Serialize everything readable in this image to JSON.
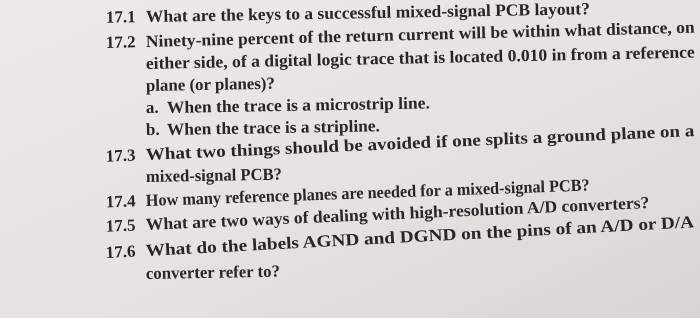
{
  "questions": [
    {
      "number": "17.1",
      "lines": [
        "What are the keys to a successful mixed-signal PCB layout?"
      ]
    },
    {
      "number": "17.2",
      "lines": [
        "Ninety-nine percent of the return current will be within what distance, on",
        "either side, of a digital logic trace that is located 0.010 in from a reference",
        "plane (or planes)?"
      ],
      "items": [
        {
          "label": "a.",
          "text": "When the trace is a microstrip line."
        },
        {
          "label": "b.",
          "text": "When the trace is a stripline."
        }
      ]
    },
    {
      "number": "17.3",
      "lines": [
        "What two things should be avoided if one splits a ground plane on a",
        "mixed-signal PCB?"
      ]
    },
    {
      "number": "17.4",
      "lines": [
        "How many reference planes are needed for a mixed-signal PCB?"
      ]
    },
    {
      "number": "17.5",
      "lines": [
        "What are two ways of dealing with high-resolution A/D converters?"
      ]
    },
    {
      "number": "17.6",
      "lines": [
        "What do the labels AGND and DGND on the pins of an A/D or D/A",
        "converter refer to?"
      ]
    }
  ]
}
